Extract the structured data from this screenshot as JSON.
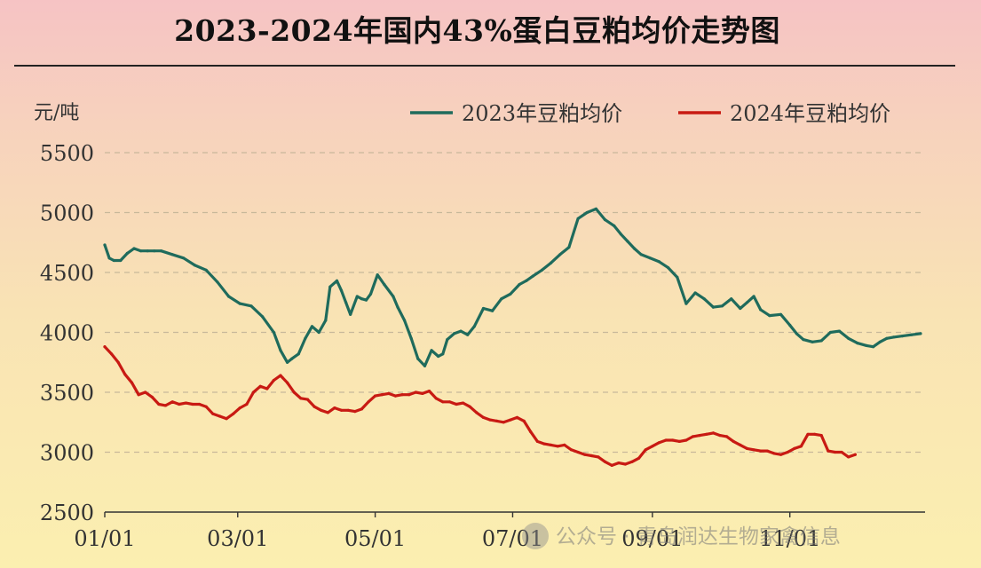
{
  "chart_data": {
    "type": "line",
    "title": "2023-2024年国内43%蛋白豆粕均价走势图",
    "ylabel": "元/吨",
    "xlabel": "",
    "ylim": [
      2500,
      5500
    ],
    "yticks": [
      "5500",
      "5000",
      "4500",
      "4000",
      "3500",
      "3000",
      "2500"
    ],
    "xticks": [
      "01/01",
      "03/01",
      "05/01",
      "07/01",
      "09/01",
      "11/01"
    ],
    "xtick_days": [
      0,
      59,
      120,
      181,
      243,
      304
    ],
    "xlim_days": [
      0,
      364
    ],
    "grid": true,
    "legend_position": "top-right",
    "colors": {
      "2023年豆粕均价": "#1f6b5c",
      "2024年豆粕均价": "#c81a13"
    },
    "series": [
      {
        "name": "2023年豆粕均价",
        "color": "#1f6b5c",
        "x": [
          0,
          2,
          4,
          7,
          10,
          13,
          16,
          19,
          22,
          25,
          30,
          35,
          40,
          45,
          50,
          55,
          60,
          65,
          70,
          75,
          78,
          81,
          83,
          86,
          89,
          92,
          95,
          98,
          100,
          103,
          105,
          107,
          109,
          112,
          114,
          116,
          118,
          121,
          124,
          128,
          130,
          133,
          136,
          139,
          142,
          145,
          148,
          150,
          152,
          155,
          158,
          161,
          164,
          168,
          172,
          176,
          180,
          184,
          187,
          190,
          194,
          198,
          202,
          206,
          210,
          214,
          218,
          222,
          226,
          229,
          232,
          235,
          238,
          242,
          246,
          250,
          254,
          258,
          262,
          266,
          270,
          274,
          278,
          282,
          285,
          288,
          291,
          295,
          300,
          304,
          307,
          310,
          314,
          318,
          322,
          326,
          330,
          334,
          338,
          341,
          344,
          347,
          350,
          354,
          358,
          362
        ],
        "y": [
          4730,
          4620,
          4600,
          4600,
          4660,
          4700,
          4680,
          4680,
          4680,
          4680,
          4650,
          4620,
          4560,
          4520,
          4420,
          4300,
          4240,
          4220,
          4130,
          4000,
          3850,
          3750,
          3780,
          3820,
          3950,
          4050,
          4000,
          4100,
          4380,
          4430,
          4350,
          4250,
          4150,
          4300,
          4280,
          4270,
          4320,
          4480,
          4400,
          4300,
          4210,
          4100,
          3950,
          3780,
          3720,
          3850,
          3800,
          3820,
          3940,
          3990,
          4010,
          3980,
          4050,
          4200,
          4180,
          4280,
          4320,
          4400,
          4430,
          4470,
          4520,
          4580,
          4650,
          4710,
          4950,
          5000,
          5030,
          4940,
          4890,
          4820,
          4760,
          4700,
          4650,
          4620,
          4590,
          4540,
          4460,
          4240,
          4330,
          4280,
          4210,
          4220,
          4280,
          4200,
          4250,
          4300,
          4190,
          4140,
          4150,
          4060,
          3990,
          3940,
          3920,
          3930,
          4000,
          4010,
          3950,
          3910,
          3890,
          3880,
          3920,
          3950,
          3960,
          3970,
          3980,
          3990
        ]
      },
      {
        "name": "2024年豆粕均价",
        "color": "#c81a13",
        "x": [
          0,
          3,
          6,
          9,
          12,
          15,
          18,
          21,
          24,
          27,
          30,
          33,
          36,
          39,
          42,
          45,
          48,
          51,
          54,
          57,
          60,
          63,
          66,
          69,
          72,
          75,
          78,
          79,
          81,
          84,
          87,
          90,
          93,
          96,
          99,
          102,
          105,
          108,
          111,
          114,
          117,
          120,
          123,
          126,
          129,
          132,
          135,
          138,
          141,
          144,
          147,
          150,
          153,
          156,
          159,
          162,
          165,
          168,
          171,
          174,
          177,
          180,
          183,
          186,
          189,
          192,
          195,
          198,
          201,
          204,
          207,
          210,
          213,
          216,
          219,
          222,
          225,
          228,
          231,
          234,
          237,
          240,
          243,
          246,
          249,
          252,
          255,
          258,
          261,
          264,
          267,
          270,
          273,
          276,
          279,
          282,
          285,
          288,
          291,
          294,
          297,
          300,
          303,
          306,
          309,
          312,
          315,
          318,
          321,
          324,
          327,
          330,
          333
        ],
        "y": [
          3880,
          3820,
          3750,
          3650,
          3580,
          3480,
          3500,
          3460,
          3400,
          3390,
          3420,
          3400,
          3410,
          3400,
          3400,
          3380,
          3320,
          3300,
          3280,
          3320,
          3370,
          3400,
          3500,
          3550,
          3530,
          3600,
          3640,
          3620,
          3580,
          3500,
          3450,
          3440,
          3380,
          3350,
          3330,
          3370,
          3350,
          3350,
          3340,
          3360,
          3420,
          3470,
          3480,
          3490,
          3470,
          3480,
          3480,
          3500,
          3490,
          3510,
          3450,
          3420,
          3420,
          3400,
          3410,
          3380,
          3330,
          3290,
          3270,
          3260,
          3250,
          3270,
          3290,
          3260,
          3170,
          3090,
          3070,
          3060,
          3050,
          3060,
          3020,
          3000,
          2980,
          2970,
          2960,
          2920,
          2890,
          2910,
          2900,
          2920,
          2950,
          3020,
          3050,
          3080,
          3100,
          3100,
          3090,
          3100,
          3130,
          3140,
          3150,
          3160,
          3140,
          3130,
          3090,
          3060,
          3030,
          3020,
          3010,
          3010,
          2990,
          2980,
          3000,
          3030,
          3050,
          3150,
          3150,
          3140,
          3010,
          3000,
          3000,
          2960,
          2980
        ]
      }
    ]
  },
  "watermark_text": "公众号 · 青岛润达生物家禽信息"
}
